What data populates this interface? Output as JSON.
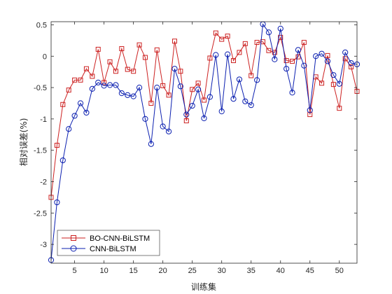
{
  "chart_data": {
    "type": "line",
    "xlabel": "训练集",
    "ylabel": "相对误差(%)",
    "xlim": [
      1,
      53
    ],
    "ylim": [
      -3.3,
      0.55
    ],
    "xticks": [
      5,
      10,
      15,
      20,
      25,
      30,
      35,
      40,
      45,
      50
    ],
    "yticks": [
      -3,
      -2.5,
      -2,
      -1.5,
      -1,
      -0.5,
      0,
      0.5
    ],
    "ytick_labels": [
      "-3",
      "-2.5",
      "-2",
      "-1.5",
      "-1",
      "-0.5",
      "0",
      "0.5"
    ],
    "grid": false,
    "legend_position": "bottom-left",
    "x": [
      1,
      2,
      3,
      4,
      5,
      6,
      7,
      8,
      9,
      10,
      11,
      12,
      13,
      14,
      15,
      16,
      17,
      18,
      19,
      20,
      21,
      22,
      23,
      24,
      25,
      26,
      27,
      28,
      29,
      30,
      31,
      32,
      33,
      34,
      35,
      36,
      37,
      38,
      39,
      40,
      41,
      42,
      43,
      44,
      45,
      46,
      47,
      48,
      49,
      50,
      51,
      52,
      53
    ],
    "series": [
      {
        "name": "BO-CNN-BiLSTM",
        "color": "#cc2020",
        "marker": "square",
        "values": [
          -2.25,
          -1.42,
          -0.77,
          -0.54,
          -0.38,
          -0.38,
          -0.2,
          -0.32,
          0.11,
          -0.42,
          -0.09,
          -0.24,
          0.12,
          -0.21,
          -0.24,
          0.18,
          -0.02,
          -0.75,
          0.1,
          -0.47,
          -0.62,
          0.24,
          -0.24,
          -1.03,
          -0.53,
          -0.43,
          -0.7,
          -0.03,
          0.37,
          0.27,
          0.32,
          -0.07,
          0.06,
          0.2,
          -0.31,
          0.22,
          0.23,
          0.09,
          0.06,
          0.3,
          -0.07,
          -0.08,
          -0.01,
          0.22,
          -0.93,
          -0.33,
          -0.43,
          0.01,
          -0.45,
          -0.83,
          -0.04,
          -0.17,
          -0.56
        ]
      },
      {
        "name": "CNN-BiLSTM",
        "color": "#0b1fb0",
        "marker": "circle",
        "values": [
          -3.25,
          -2.33,
          -1.66,
          -1.16,
          -0.95,
          -0.75,
          -0.9,
          -0.52,
          -0.42,
          -0.47,
          -0.46,
          -0.46,
          -0.59,
          -0.62,
          -0.64,
          -0.5,
          -1.0,
          -1.4,
          -0.5,
          -1.12,
          -1.2,
          -0.2,
          -0.48,
          -0.93,
          -0.79,
          -0.53,
          -0.99,
          -0.65,
          0.02,
          -0.88,
          0.03,
          -0.68,
          -0.37,
          -0.72,
          -0.78,
          -0.38,
          0.51,
          0.38,
          -0.05,
          0.44,
          -0.2,
          -0.58,
          0.1,
          -0.15,
          -0.86,
          0.0,
          0.04,
          -0.08,
          -0.3,
          -0.44,
          0.06,
          -0.11,
          -0.13
        ]
      }
    ]
  }
}
